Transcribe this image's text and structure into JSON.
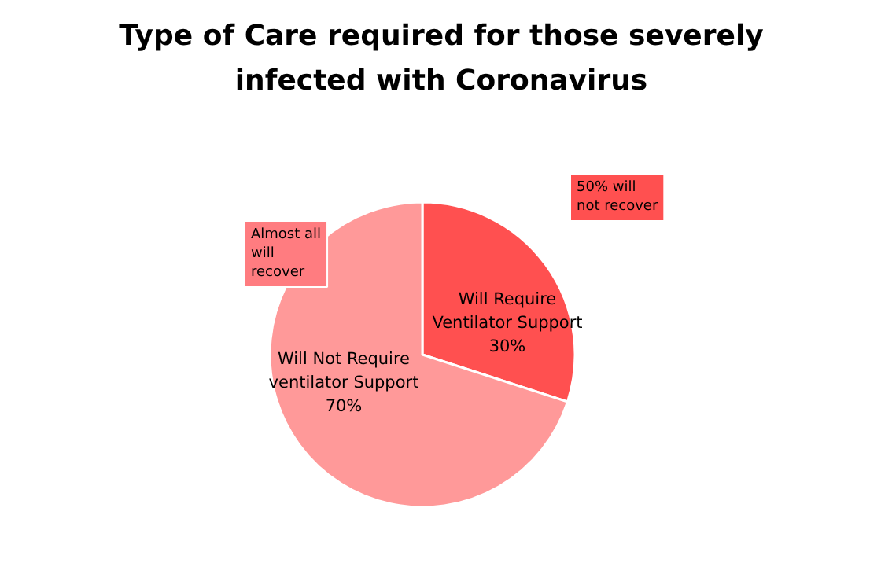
{
  "chart_data": {
    "type": "pie",
    "title": "Type of Care required for those severely\ninfected with Coronavirus",
    "categories": [
      "Will Require\nVentilator Support",
      "Will Not Require\nventilator Support"
    ],
    "values": [
      30,
      70
    ],
    "colors": [
      "#ff5050",
      "#ff9999"
    ],
    "value_labels": [
      "30%",
      "70%"
    ],
    "annotations": [
      "50% will\nnot recover",
      "Almost all\nwill\nrecover"
    ]
  }
}
